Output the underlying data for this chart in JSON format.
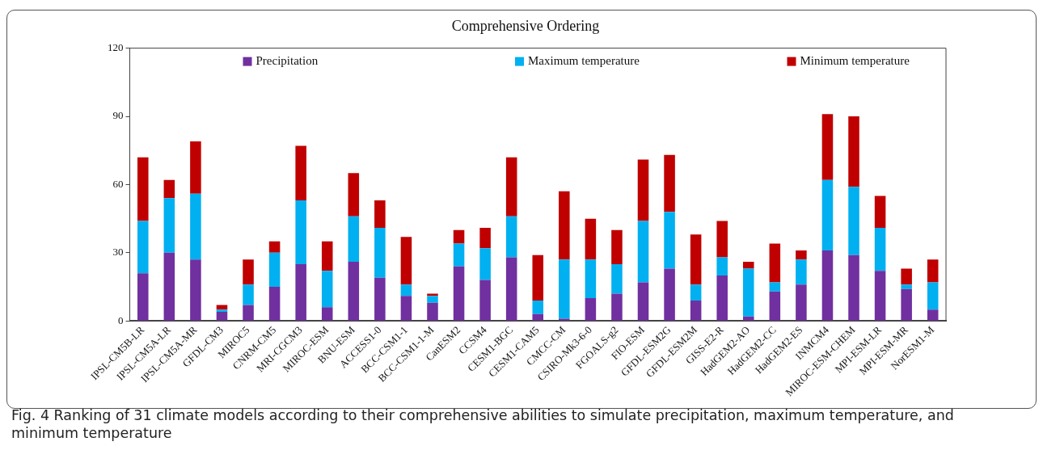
{
  "chart_data": {
    "type": "bar",
    "title": "Comprehensive Ordering",
    "stacked": true,
    "legend": "top",
    "grid": false,
    "categories": [
      "IPSL-CM5B-LR",
      "IPSL-CM5A-LR",
      "IPSL-CM5A-MR",
      "GFDL-CM3",
      "MIROC5",
      "CNRM-CM5",
      "MRI-CGCM3",
      "MIROC-ESM",
      "BNU-ESM",
      "ACCESS1-0",
      "BCC-CSM1-1",
      "BCC-CSM1-1-M",
      "CanESM2",
      "CCSM4",
      "CESM1-BGC",
      "CESM1-CAM5",
      "CMCC-CM",
      "CSIRO-Mk3-6-0",
      "FGOALS-g2",
      "FIO-ESM",
      "GFDL-ESM2G",
      "GFDL-ESM2M",
      "GISS-E2-R",
      "HadGEM2-AO",
      "HadGEM2-CC",
      "HadGEM2-ES",
      "INMCM4",
      "MIROC-ESM-CHEM",
      "MPI-ESM-LR",
      "MPI-ESM-MR",
      "NorESM1-M"
    ],
    "series": [
      {
        "name": "Precipitation",
        "color": "#7030a0",
        "values": [
          21,
          30,
          27,
          4,
          7,
          15,
          25,
          6,
          26,
          19,
          11,
          8,
          24,
          18,
          28,
          3,
          1,
          10,
          12,
          17,
          23,
          9,
          20,
          2,
          13,
          16,
          31,
          29,
          22,
          14,
          5
        ]
      },
      {
        "name": "Maximum temperature",
        "color": "#00b0f0",
        "values": [
          23,
          24,
          29,
          1,
          9,
          15,
          28,
          16,
          20,
          22,
          5,
          3,
          10,
          14,
          18,
          6,
          26,
          17,
          13,
          27,
          25,
          7,
          8,
          21,
          4,
          11,
          31,
          30,
          19,
          2,
          12
        ]
      },
      {
        "name": "Minimum temperature",
        "color": "#c00000",
        "values": [
          28,
          8,
          23,
          2,
          11,
          5,
          24,
          13,
          19,
          12,
          21,
          1,
          6,
          9,
          26,
          20,
          30,
          18,
          15,
          27,
          25,
          22,
          16,
          3,
          17,
          4,
          29,
          31,
          14,
          7,
          10
        ]
      }
    ],
    "ylim": [
      0,
      120
    ],
    "yticks": [
      0,
      30,
      60,
      90,
      120
    ],
    "annotations": [
      "Fig. 4 Ranking of 31 climate models according to their comprehensive abilities to simulate precipitation, maximum temperature, and minimum temperature"
    ]
  }
}
